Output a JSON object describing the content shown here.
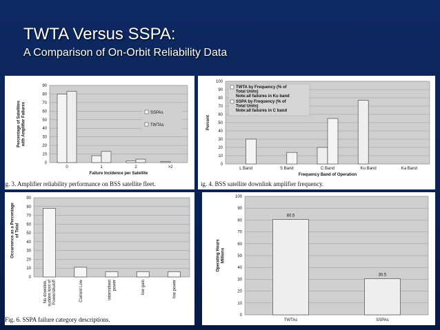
{
  "slide": {
    "title": "TWTA Versus SSPA:",
    "subtitle": "A Comparison of On-Orbit Reliability Data"
  },
  "colors": {
    "background": "#0b2356",
    "bar_light": "#f4f4f4",
    "bar_dark": "#d9d9d9",
    "plot_bg": "#cfcfcf"
  },
  "chart_data": [
    {
      "type": "bar",
      "caption": "ig. 3.    Amplifier reliability performance on BSS satellite fleet.",
      "xlabel": "Failure Incidence per Satellite",
      "ylabel": "Percentage of Satellites with Amplifier Failures",
      "categories": [
        "0",
        "1",
        "2",
        ">2"
      ],
      "ylim": [
        0,
        90
      ],
      "yticks": [
        "0",
        "10",
        "20",
        "30",
        "40",
        "50",
        "60",
        "70",
        "80",
        "90"
      ],
      "series": [
        {
          "name": "SSPAs",
          "values": [
            80,
            8,
            2,
            1
          ]
        },
        {
          "name": "TWTAs",
          "values": [
            83,
            13,
            4,
            0
          ]
        }
      ],
      "legend": "right",
      "grid": true
    },
    {
      "type": "bar",
      "caption": "ig. 4.    BSS satellite downlink amplifier frequency.",
      "xlabel": "Frequency Band of Operation",
      "ylabel": "Percent",
      "categories": [
        "L Band",
        "S Band",
        "C Band",
        "Ku Band",
        "Ka Band"
      ],
      "ylim": [
        0,
        100
      ],
      "yticks": [
        "0",
        "10",
        "20",
        "30",
        "40",
        "50",
        "60",
        "70",
        "80",
        "90",
        "100"
      ],
      "series": [
        {
          "name": "TWTA by Frequency (% of Total Units) Note:all failures in Ku band",
          "values": [
            0,
            0,
            20,
            77,
            0
          ]
        },
        {
          "name": "SSPA by Frequency (% of Total Units) Note:all failures in C band",
          "values": [
            30,
            14,
            55,
            0,
            0
          ]
        }
      ],
      "legend": "top-left",
      "grid": true
    },
    {
      "type": "bar",
      "caption": "Fig. 6.    SSPA failure category descriptions.",
      "xlabel": "",
      "ylabel": "Occurrence as a Percentage of Total",
      "categories": [
        "No downlink, sudden loss of Power/shutoff",
        "Current Low",
        "intermittent power",
        "low gain",
        "low power"
      ],
      "ylim": [
        0,
        90
      ],
      "yticks": [
        "0",
        "10",
        "20",
        "30",
        "40",
        "50",
        "60",
        "70",
        "80",
        "90"
      ],
      "values": [
        78,
        11,
        6,
        6,
        6
      ],
      "grid": true
    },
    {
      "type": "bar",
      "caption": "",
      "xlabel": "",
      "ylabel": "Operating Hours Millions",
      "categories": [
        "TWTAs",
        "SSPAs"
      ],
      "ylim": [
        0,
        100
      ],
      "yticks": [
        "0",
        "10",
        "20",
        "30",
        "40",
        "50",
        "60",
        "70",
        "80",
        "90",
        "100"
      ],
      "values": [
        80.5,
        30.5
      ],
      "value_labels": [
        "80.5",
        "30.5"
      ],
      "grid": true
    }
  ]
}
